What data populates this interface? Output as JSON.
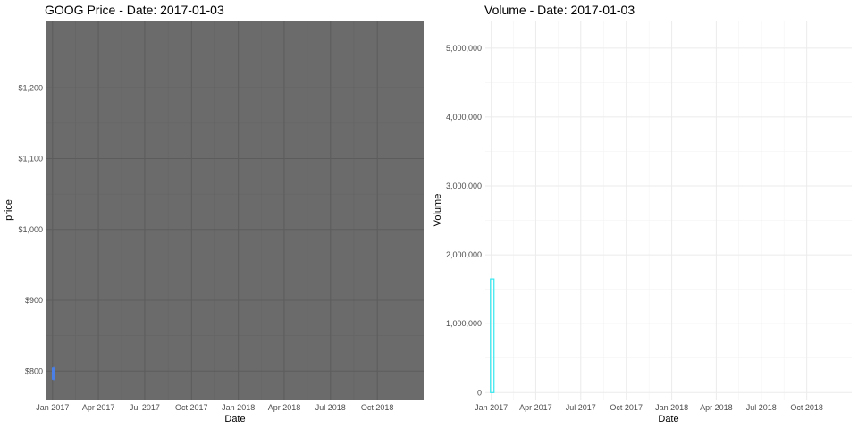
{
  "chart_data": [
    {
      "type": "candlestick",
      "title": "GOOG Price - Date: 2017-01-03",
      "xlabel": "Date",
      "ylabel": "price",
      "x_ticks": [
        "2017-01-01",
        "2017-04-01",
        "2017-07-01",
        "2017-10-01",
        "2018-01-01",
        "2018-04-01",
        "2018-07-01",
        "2018-10-01"
      ],
      "x_tick_labels": [
        "Jan 2017",
        "Apr 2017",
        "Jul 2017",
        "Oct 2017",
        "Jan 2018",
        "Apr 2018",
        "Jul 2018",
        "Oct 2018"
      ],
      "xlim": [
        "2016-12-20",
        "2018-12-31"
      ],
      "y_ticks": [
        800,
        900,
        1000,
        1100,
        1200
      ],
      "y_tick_labels": [
        "$800",
        "$900",
        "$1,000",
        "$1,100",
        "$1,200"
      ],
      "ylim": [
        760,
        1295
      ],
      "grid": true,
      "panel_background": "#6b6b6b",
      "candles": [
        {
          "date": "2017-01-03",
          "open": 788,
          "high": 806,
          "low": 787,
          "close": 805
        }
      ],
      "candle_color": "#4a7fe8"
    },
    {
      "type": "bar",
      "title": "Volume - Date: 2017-01-03",
      "xlabel": "Date",
      "ylabel": "Volume",
      "x_ticks": [
        "2017-01-01",
        "2017-04-01",
        "2017-07-01",
        "2017-10-01",
        "2018-01-01",
        "2018-04-01",
        "2018-07-01",
        "2018-10-01"
      ],
      "x_tick_labels": [
        "Jan 2017",
        "Apr 2017",
        "Jul 2017",
        "Oct 2017",
        "Jan 2018",
        "Apr 2018",
        "Jul 2018",
        "Oct 2018"
      ],
      "xlim": [
        "2016-12-20",
        "2018-12-31"
      ],
      "y_ticks": [
        0,
        1000000,
        2000000,
        3000000,
        4000000,
        5000000
      ],
      "y_tick_labels": [
        "0",
        "1,000,000",
        "2,000,000",
        "3,000,000",
        "4,000,000",
        "5,000,000"
      ],
      "ylim": [
        -100000,
        5400000
      ],
      "grid": true,
      "points": [
        {
          "date": "2017-01-03",
          "value": 1650000
        }
      ],
      "bar_color": "#33e8f0"
    }
  ]
}
